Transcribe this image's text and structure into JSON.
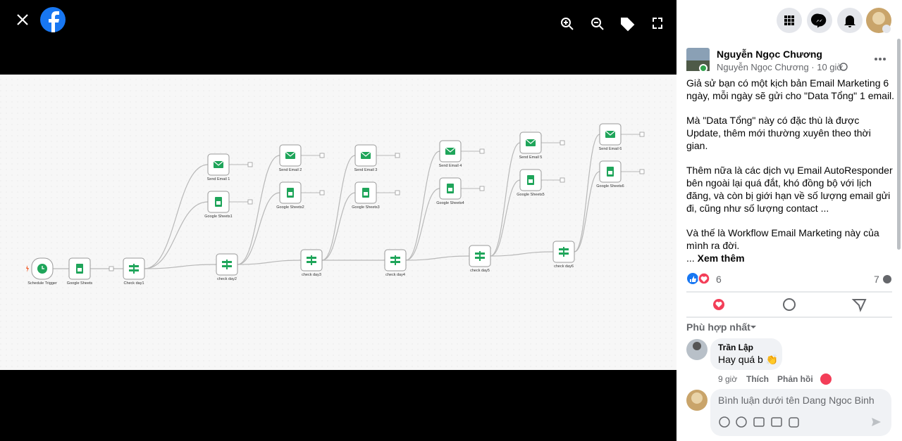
{
  "viewer": {
    "nodes": [
      "Schedule Trigger",
      "Google Sheets",
      "Check day1",
      "Send Email 1",
      "Google Sheets1",
      "Send Email 2",
      "Google Sheets2",
      "check day2",
      "Send Email 3",
      "Google Sheets3",
      "check day3",
      "Send Email 4",
      "Google Sheets4",
      "check day4",
      "Send Email 5",
      "Google Sheets5",
      "check day5",
      "Send Email 6",
      "Google Sheets6",
      "check day6"
    ]
  },
  "post": {
    "author": "Nguyễn Ngọc Chương",
    "meta": "Nguyễn Ngọc Chương · 10 giờ",
    "paragraphs": [
      "Giả sử bạn có một kịch bản Email Marketing 6 ngày, mỗi ngày sẽ gửi cho \"Data Tổng\" 1 email.",
      "Mà \"Data Tổng\" này có đặc thù là được Update, thêm mới thường xuyên theo thời gian.",
      "Thêm nữa là các dịch vụ Email AutoResponder bên ngoài lại quá đắt, khó đồng bộ với lịch đăng, và còn bị giới hạn về số lượng email gửi đi, cũng như số lượng contact ...",
      "Và thế là Workflow Email Marketing này của mình ra đời."
    ],
    "ellipsis": "...",
    "see_more": "Xem thêm",
    "reactions": "6",
    "comments": "7",
    "sort": "Phù hợp nhất",
    "comment": {
      "author": "Trần Lập",
      "text": "Hay quá b 👏",
      "time": "9 giờ",
      "like": "Thích",
      "reply": "Phản hồi"
    },
    "input_placeholder": "Bình luận dưới tên Dang Ngoc Binh"
  }
}
